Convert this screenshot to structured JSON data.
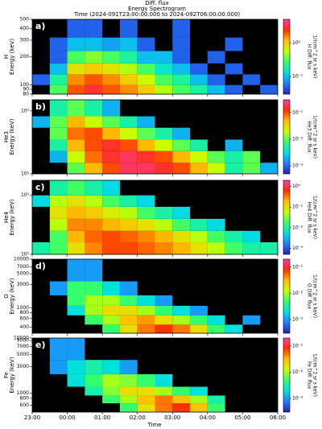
{
  "header": {
    "title": [
      "Diff. flux",
      "Energy Spectrogram",
      "Time (2024-091T23:00:00.000 to 2024-092T06:00:00.000)"
    ]
  },
  "colorscale": [
    "#2a1fb8",
    "#1f7fff",
    "#00e0e0",
    "#30ff70",
    "#c8ff00",
    "#ffc000",
    "#ff3000",
    "#ff3ca8"
  ],
  "time_axis": {
    "label": "Time",
    "xlim": [
      "23:00",
      "06:00"
    ],
    "xticks": [
      "23:00",
      "00:00",
      "01:00",
      "02:00",
      "03:00",
      "04:00",
      "05:00",
      "06:00"
    ]
  },
  "chart_data": [
    {
      "type": "heatmap",
      "panel_label": "a)",
      "ylabel": [
        "H",
        "Energy (keV)"
      ],
      "log_y": true,
      "ylim": [
        80,
        500
      ],
      "yticks": [
        80,
        90,
        100,
        200,
        300,
        400,
        500
      ],
      "clim": [
        0.03,
        5
      ],
      "cticks": [
        {
          "value": 0.1,
          "label": "10⁻¹"
        },
        {
          "value": 1,
          "label": "10⁰"
        }
      ],
      "clabel": [
        "H Diff. flux",
        "1/(cm^2 sr s keV)"
      ],
      "x": [
        "23:00",
        "23:30",
        "00:00",
        "00:30",
        "01:00",
        "01:30",
        "02:00",
        "02:30",
        "03:00",
        "03:30",
        "04:00",
        "04:30",
        "05:00",
        "05:30"
      ],
      "energy_bins": [
        80,
        100,
        130,
        170,
        230,
        320,
        500
      ],
      "values": [
        [
          null,
          0.3,
          2,
          3,
          2,
          1.5,
          1,
          0.5,
          0.3,
          0.2,
          0.1,
          0.05,
          null,
          0.05
        ],
        [
          0.05,
          0.2,
          1.5,
          2,
          1.5,
          1,
          0.6,
          0.3,
          0.2,
          0.1,
          0.05,
          null,
          0.05,
          null
        ],
        [
          null,
          0.1,
          0.8,
          1,
          0.8,
          0.5,
          0.3,
          0.15,
          0.1,
          0.05,
          null,
          0.05,
          null,
          null
        ],
        [
          null,
          0.05,
          0.3,
          0.4,
          0.3,
          0.2,
          0.1,
          0.1,
          0.05,
          null,
          0.05,
          null,
          null,
          null
        ],
        [
          null,
          0.05,
          0.1,
          0.1,
          0.08,
          0.1,
          0.05,
          null,
          0.05,
          null,
          null,
          0.05,
          null,
          null
        ],
        [
          null,
          null,
          0.05,
          0.05,
          null,
          0.05,
          null,
          null,
          0.05,
          null,
          null,
          null,
          null,
          null
        ]
      ]
    },
    {
      "type": "heatmap",
      "panel_label": "b)",
      "ylabel": [
        "He3",
        "Energy (keV)"
      ],
      "log_y": true,
      "ylim": [
        100,
        1500
      ],
      "yticks": [
        {
          "value": 100,
          "label": "10²"
        },
        {
          "value": 1000,
          "label": "10³"
        }
      ],
      "clim": [
        0.0005,
        0.3
      ],
      "cticks": [
        {
          "value": 0.001,
          "label": "10⁻³"
        },
        {
          "value": 0.01,
          "label": "10⁻²"
        },
        {
          "value": 0.1,
          "label": "10⁻¹"
        }
      ],
      "clabel": [
        "He3 Diff. flux",
        "1/(cm^2 sr s keV)"
      ],
      "x": [
        "23:00",
        "23:30",
        "00:00",
        "00:30",
        "01:00",
        "01:30",
        "02:00",
        "02:30",
        "03:00",
        "03:30",
        "04:00",
        "04:30",
        "05:00",
        "05:30"
      ],
      "energy_bins": [
        100,
        150,
        230,
        350,
        540,
        820,
        1500
      ],
      "values": [
        [
          null,
          null,
          0.01,
          0.05,
          0.1,
          0.2,
          0.2,
          0.15,
          0.1,
          0.05,
          0.02,
          0.005,
          0.01,
          0.002
        ],
        [
          null,
          0.002,
          0.02,
          0.08,
          0.15,
          0.2,
          0.15,
          0.1,
          0.05,
          0.02,
          0.01,
          0.005,
          0.01,
          null
        ],
        [
          null,
          0.005,
          0.05,
          0.1,
          0.15,
          0.1,
          0.05,
          0.02,
          0.01,
          0.005,
          null,
          0.002,
          null,
          null
        ],
        [
          null,
          0.01,
          0.08,
          0.1,
          0.05,
          0.02,
          0.01,
          0.005,
          0.002,
          null,
          null,
          null,
          null,
          null
        ],
        [
          0.002,
          0.01,
          0.05,
          0.02,
          0.01,
          0.005,
          0.002,
          null,
          null,
          null,
          null,
          null,
          null,
          null
        ],
        [
          null,
          0.005,
          0.01,
          0.005,
          0.002,
          null,
          null,
          null,
          null,
          null,
          null,
          null,
          null,
          null
        ]
      ]
    },
    {
      "type": "heatmap",
      "panel_label": "c)",
      "ylabel": [
        "He4",
        "Energy (keV)"
      ],
      "log_y": true,
      "ylim": [
        100,
        1800
      ],
      "yticks": [
        {
          "value": 100,
          "label": "10²"
        },
        {
          "value": 1000,
          "label": "10³"
        }
      ],
      "clim": [
        0.0005,
        2
      ],
      "cticks": [
        {
          "value": 0.001,
          "label": "10⁻³"
        },
        {
          "value": 0.01,
          "label": "10⁻²"
        },
        {
          "value": 0.1,
          "label": "10⁻¹"
        },
        {
          "value": 1,
          "label": "10⁰"
        }
      ],
      "clabel": [
        "He4 Diff. flux",
        "1/(cm^2 sr s keV)"
      ],
      "x": [
        "23:00",
        "23:30",
        "00:00",
        "00:30",
        "01:00",
        "01:30",
        "02:00",
        "02:30",
        "03:00",
        "03:30",
        "04:00",
        "04:30",
        "05:00",
        "05:30"
      ],
      "energy_bins": [
        100,
        160,
        250,
        400,
        640,
        1000,
        1800
      ],
      "values": [
        [
          0.01,
          0.02,
          0.1,
          0.3,
          0.5,
          0.5,
          0.4,
          0.3,
          0.2,
          0.1,
          0.05,
          0.02,
          0.01,
          0.01
        ],
        [
          null,
          0.02,
          0.2,
          0.4,
          0.5,
          0.4,
          0.3,
          0.2,
          0.1,
          0.05,
          0.02,
          0.01,
          0.005,
          null
        ],
        [
          null,
          0.05,
          0.3,
          0.3,
          0.2,
          0.15,
          0.1,
          0.05,
          0.02,
          0.01,
          0.005,
          null,
          null,
          null
        ],
        [
          null,
          0.1,
          0.2,
          0.15,
          0.08,
          0.05,
          0.02,
          0.01,
          0.005,
          null,
          null,
          null,
          null,
          null
        ],
        [
          0.005,
          0.05,
          0.1,
          0.05,
          0.02,
          0.01,
          0.005,
          null,
          null,
          null,
          null,
          null,
          null,
          null
        ],
        [
          null,
          0.01,
          0.02,
          0.01,
          0.005,
          null,
          null,
          null,
          null,
          null,
          null,
          null,
          null,
          null
        ]
      ]
    },
    {
      "type": "heatmap",
      "panel_label": "d)",
      "ylabel": [
        "O",
        "Energy (keV)"
      ],
      "log_y": true,
      "ylim": [
        300,
        10000
      ],
      "yticks": [
        400,
        600,
        800,
        1000,
        3000,
        5000,
        7000,
        10000
      ],
      "clim": [
        0.0003,
        0.2
      ],
      "cticks": [
        {
          "value": 0.001,
          "label": "10⁻³"
        },
        {
          "value": 0.01,
          "label": "10⁻²"
        },
        {
          "value": 0.1,
          "label": "10⁻¹"
        }
      ],
      "clabel": [
        "O Diff. flux",
        "1/(cm^2 sr s keV)"
      ],
      "x": [
        "23:00",
        "23:30",
        "00:00",
        "00:30",
        "01:00",
        "01:30",
        "02:00",
        "02:30",
        "03:00",
        "03:30",
        "04:00",
        "04:30",
        "05:00",
        "05:30"
      ],
      "energy_bins": [
        300,
        450,
        700,
        1100,
        1800,
        3500,
        10000
      ],
      "values": [
        [
          null,
          null,
          null,
          null,
          0.005,
          0.02,
          0.05,
          0.08,
          0.05,
          0.02,
          0.005,
          0.002,
          null,
          null
        ],
        [
          null,
          null,
          null,
          0.005,
          0.01,
          0.03,
          0.04,
          0.02,
          0.01,
          0.005,
          0.002,
          null,
          0.001,
          null
        ],
        [
          null,
          null,
          0.002,
          0.01,
          0.02,
          0.02,
          0.01,
          0.005,
          0.002,
          0.001,
          null,
          null,
          null,
          null
        ],
        [
          null,
          null,
          0.005,
          0.01,
          0.01,
          0.005,
          0.002,
          0.001,
          null,
          null,
          null,
          null,
          null,
          null
        ],
        [
          null,
          0.001,
          0.005,
          0.005,
          0.002,
          0.001,
          null,
          null,
          null,
          null,
          null,
          null,
          null,
          null
        ],
        [
          null,
          null,
          0.001,
          0.001,
          null,
          null,
          null,
          null,
          null,
          null,
          null,
          null,
          null,
          null
        ]
      ]
    },
    {
      "type": "heatmap",
      "panel_label": "e)",
      "ylabel": [
        "Fe",
        "Energy (keV)"
      ],
      "log_y": true,
      "ylim": [
        450,
        10000
      ],
      "yticks": [
        600,
        800,
        1000,
        3000,
        5000,
        7000,
        9000,
        10000
      ],
      "clim": [
        0.0003,
        0.2
      ],
      "cticks": [
        {
          "value": 0.001,
          "label": "10⁻³"
        },
        {
          "value": 0.01,
          "label": "10⁻²"
        },
        {
          "value": 0.1,
          "label": "10⁻¹"
        }
      ],
      "clabel": [
        "Fe Diff. flux",
        "1/(cm^2 sr s keV)"
      ],
      "x": [
        "23:00",
        "23:30",
        "00:00",
        "00:30",
        "01:00",
        "01:30",
        "02:00",
        "02:30",
        "03:00",
        "03:30",
        "04:00",
        "04:30",
        "05:00",
        "05:30"
      ],
      "energy_bins": [
        450,
        650,
        900,
        1300,
        2200,
        4000,
        10000
      ],
      "values": [
        [
          null,
          null,
          null,
          null,
          null,
          0.005,
          0.02,
          0.05,
          0.08,
          0.03,
          0.005,
          null,
          null,
          null
        ],
        [
          null,
          null,
          null,
          null,
          0.005,
          0.01,
          0.03,
          0.05,
          0.03,
          0.01,
          0.003,
          null,
          null,
          null
        ],
        [
          null,
          null,
          null,
          0.003,
          0.008,
          0.02,
          0.02,
          0.01,
          0.005,
          0.002,
          null,
          null,
          null,
          null
        ],
        [
          null,
          null,
          0.002,
          0.005,
          0.01,
          0.008,
          0.005,
          0.002,
          null,
          null,
          null,
          null,
          null,
          null
        ],
        [
          null,
          0.001,
          0.002,
          0.003,
          0.002,
          0.001,
          null,
          null,
          null,
          null,
          null,
          null,
          null,
          null
        ],
        [
          null,
          0.001,
          0.001,
          null,
          null,
          null,
          null,
          null,
          null,
          null,
          null,
          null,
          null,
          null
        ]
      ]
    }
  ]
}
